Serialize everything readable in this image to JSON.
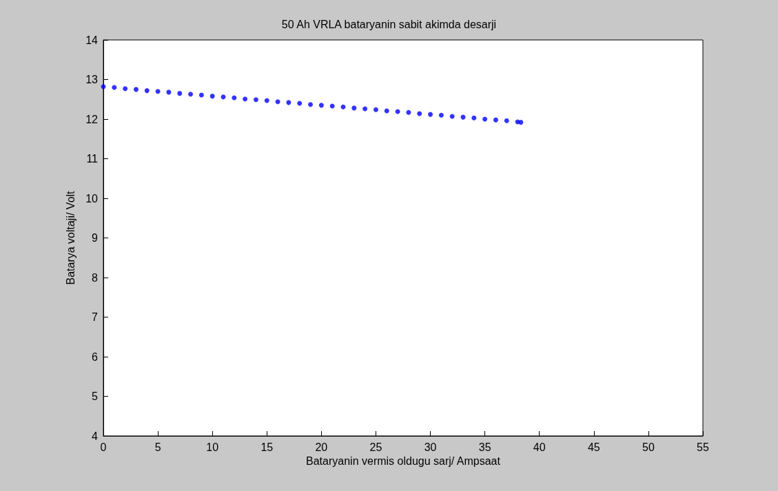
{
  "chart_data": {
    "type": "scatter",
    "title": "50 Ah VRLA bataryanin sabit akimda desarji",
    "xlabel": "Bataryanin vermis oldugu sarj/ Ampsaat",
    "ylabel": "Batarya voltaji/ Volt",
    "x": [
      0,
      1,
      2,
      3,
      4,
      5,
      6,
      7,
      8,
      9,
      10,
      11,
      12,
      13,
      14,
      15,
      16,
      17,
      18,
      19,
      20,
      21,
      22,
      23,
      24,
      25,
      26,
      27,
      28,
      29,
      30,
      31,
      32,
      33,
      34,
      35,
      36,
      37,
      38,
      38.3
    ],
    "series": [
      {
        "color": "#0000ff",
        "values": [
          12.82,
          12.8,
          12.77,
          12.75,
          12.72,
          12.7,
          12.68,
          12.65,
          12.63,
          12.61,
          12.58,
          12.56,
          12.54,
          12.51,
          12.49,
          12.47,
          12.44,
          12.42,
          12.4,
          12.37,
          12.35,
          12.33,
          12.31,
          12.28,
          12.26,
          12.24,
          12.21,
          12.19,
          12.17,
          12.14,
          12.12,
          12.1,
          12.07,
          12.05,
          12.03,
          12.0,
          11.98,
          11.96,
          11.93,
          11.92
        ]
      }
    ],
    "xlim": [
      0,
      55
    ],
    "xticks": [
      0,
      5,
      10,
      15,
      20,
      25,
      30,
      35,
      40,
      45,
      50,
      55
    ],
    "ylim": [
      4,
      14
    ],
    "yticks": [
      4,
      5,
      6,
      7,
      8,
      9,
      10,
      11,
      12,
      13,
      14
    ],
    "grid": false,
    "marker": "circle"
  }
}
